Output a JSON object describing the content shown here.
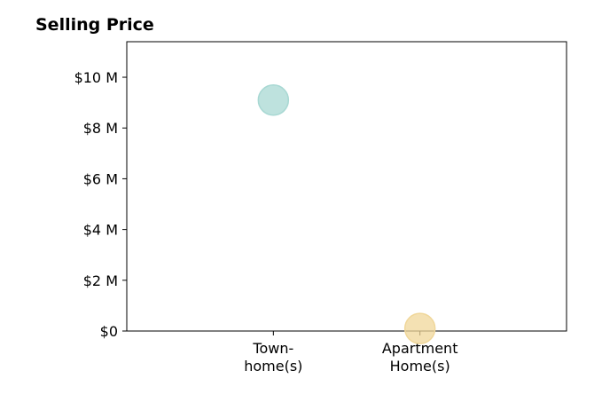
{
  "chart_data": {
    "type": "scatter",
    "title": "Selling Price",
    "xlabel": "",
    "ylabel": "",
    "categories": [
      "Town-\nhome(s)",
      "Apartment\nHome(s)"
    ],
    "y_tick_labels": [
      "$0",
      "$2 M",
      "$4 M",
      "$6 M",
      "$8 M",
      "$10 M"
    ],
    "y_ticks": [
      0,
      2000000,
      4000000,
      6000000,
      8000000,
      10000000
    ],
    "ylim": [
      0,
      11400000
    ],
    "xlim": [
      -1,
      2
    ],
    "series": [
      {
        "category_index": 0,
        "values": [
          9100000
        ],
        "color": "#a8d8d3"
      },
      {
        "category_index": 1,
        "values": [
          100000
        ],
        "color": "#f0d79a"
      }
    ],
    "grid": false,
    "legend": "none"
  }
}
